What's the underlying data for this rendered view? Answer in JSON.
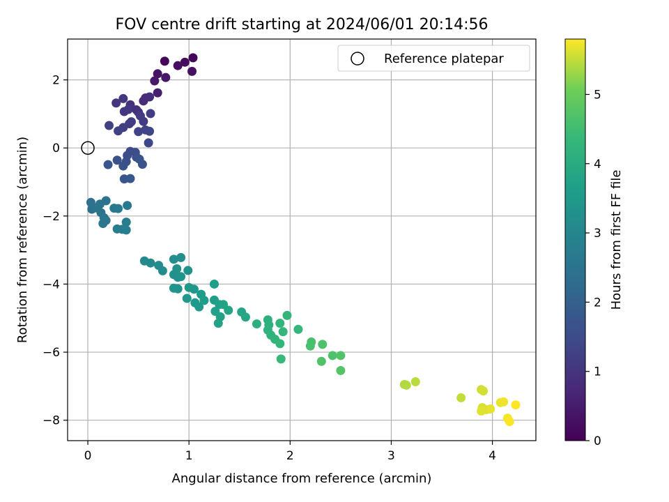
{
  "chart_data": {
    "type": "scatter",
    "title": "FOV centre drift starting at 2024/06/01 20:14:56",
    "xlabel": "Angular distance from reference (arcmin)",
    "ylabel": "Rotation from reference (arcmin)",
    "xlim": [
      -0.2,
      4.43
    ],
    "ylim": [
      -8.6,
      3.2
    ],
    "xticks": [
      0,
      1,
      2,
      3,
      4
    ],
    "xtick_labels": [
      "0",
      "1",
      "2",
      "3",
      "4"
    ],
    "yticks": [
      2,
      0,
      -2,
      -4,
      -6,
      -8
    ],
    "ytick_labels": [
      "2",
      "0",
      "−2",
      "−4",
      "−6",
      "−8"
    ],
    "grid": true,
    "legend": {
      "position": "top-right",
      "entries": [
        "Reference platepar"
      ]
    },
    "reference": {
      "x": 0,
      "y": 0
    },
    "colorbar": {
      "label": "Hours from first FF file",
      "range": [
        0,
        5.8
      ],
      "ticks": [
        0,
        1,
        2,
        3,
        4,
        5
      ],
      "tick_labels": [
        "0",
        "1",
        "2",
        "3",
        "4",
        "5"
      ],
      "colormap": "viridis"
    },
    "points": [
      [
        0.76,
        2.55,
        0.1
      ],
      [
        1.04,
        2.65,
        0.15
      ],
      [
        0.96,
        2.52,
        0.2
      ],
      [
        0.89,
        2.42,
        0.25
      ],
      [
        1.03,
        2.25,
        0.3
      ],
      [
        0.69,
        2.18,
        0.35
      ],
      [
        0.77,
        2.07,
        0.4
      ],
      [
        0.66,
        1.97,
        0.45
      ],
      [
        0.69,
        1.62,
        0.55
      ],
      [
        0.55,
        1.38,
        0.8
      ],
      [
        0.57,
        1.47,
        0.82
      ],
      [
        0.61,
        1.5,
        0.85
      ],
      [
        0.48,
        1.12,
        0.9
      ],
      [
        0.5,
        1.05,
        0.92
      ],
      [
        0.42,
        1.27,
        0.95
      ],
      [
        0.28,
        1.32,
        1.0
      ],
      [
        0.35,
        1.45,
        1.02
      ],
      [
        0.36,
        1.07,
        1.05
      ],
      [
        0.4,
        1.13,
        1.07
      ],
      [
        0.52,
        0.94,
        1.1
      ],
      [
        0.55,
        0.78,
        1.12
      ],
      [
        0.62,
        1.01,
        1.15
      ],
      [
        0.41,
        0.71,
        1.18
      ],
      [
        0.43,
        0.77,
        1.2
      ],
      [
        0.35,
        0.6,
        1.22
      ],
      [
        0.21,
        0.66,
        1.25
      ],
      [
        0.3,
        0.5,
        1.27
      ],
      [
        0.5,
        0.48,
        1.3
      ],
      [
        0.57,
        0.53,
        1.32
      ],
      [
        0.61,
        0.49,
        1.35
      ],
      [
        0.6,
        0.15,
        1.38
      ],
      [
        0.42,
        -0.1,
        1.5
      ],
      [
        0.47,
        -0.13,
        1.52
      ],
      [
        0.39,
        -0.22,
        1.55
      ],
      [
        0.48,
        -0.27,
        1.58
      ],
      [
        0.38,
        -0.4,
        1.6
      ],
      [
        0.29,
        -0.36,
        1.62
      ],
      [
        0.35,
        -0.53,
        1.65
      ],
      [
        0.51,
        -0.33,
        1.68
      ],
      [
        0.54,
        -0.48,
        1.7
      ],
      [
        0.2,
        -0.49,
        1.72
      ],
      [
        0.36,
        -0.91,
        1.75
      ],
      [
        0.42,
        -0.9,
        1.78
      ],
      [
        0.03,
        -1.6,
        2.4
      ],
      [
        0.04,
        -1.8,
        2.42
      ],
      [
        0.08,
        -1.76,
        2.45
      ],
      [
        0.12,
        -1.65,
        2.48
      ],
      [
        0.18,
        -1.55,
        2.5
      ],
      [
        0.13,
        -1.9,
        2.52
      ],
      [
        0.16,
        -2.05,
        2.55
      ],
      [
        0.18,
        -2.13,
        2.58
      ],
      [
        0.15,
        -2.22,
        2.6
      ],
      [
        0.26,
        -1.77,
        2.62
      ],
      [
        0.3,
        -1.78,
        2.65
      ],
      [
        0.39,
        -1.69,
        2.68
      ],
      [
        0.38,
        -2.18,
        2.7
      ],
      [
        0.29,
        -2.38,
        2.72
      ],
      [
        0.34,
        -2.39,
        2.75
      ],
      [
        0.38,
        -2.41,
        2.78
      ],
      [
        0.56,
        -3.32,
        3.1
      ],
      [
        0.62,
        -3.38,
        3.12
      ],
      [
        0.7,
        -3.45,
        3.15
      ],
      [
        0.74,
        -3.61,
        3.18
      ],
      [
        0.85,
        -3.27,
        3.2
      ],
      [
        0.92,
        -3.22,
        3.22
      ],
      [
        0.88,
        -3.55,
        3.25
      ],
      [
        0.85,
        -3.72,
        3.28
      ],
      [
        0.89,
        -3.8,
        3.3
      ],
      [
        0.99,
        -3.6,
        3.32
      ],
      [
        0.92,
        -3.78,
        3.35
      ],
      [
        0.85,
        -4.12,
        3.38
      ],
      [
        0.89,
        -4.14,
        3.4
      ],
      [
        1.0,
        -4.1,
        3.45
      ],
      [
        1.05,
        -4.15,
        3.48
      ],
      [
        0.98,
        -4.42,
        3.5
      ],
      [
        1.06,
        -4.55,
        3.52
      ],
      [
        1.1,
        -4.67,
        3.55
      ],
      [
        1.12,
        -4.3,
        3.58
      ],
      [
        1.15,
        -4.48,
        3.6
      ],
      [
        1.25,
        -4.0,
        3.62
      ],
      [
        1.25,
        -4.47,
        3.65
      ],
      [
        1.3,
        -4.6,
        3.68
      ],
      [
        1.26,
        -4.8,
        3.7
      ],
      [
        1.31,
        -4.96,
        3.72
      ],
      [
        1.29,
        -5.15,
        3.75
      ],
      [
        1.34,
        -4.6,
        3.77
      ],
      [
        1.39,
        -4.77,
        3.8
      ],
      [
        1.52,
        -4.82,
        3.82
      ],
      [
        1.56,
        -4.97,
        3.85
      ],
      [
        1.67,
        -5.17,
        4.1
      ],
      [
        1.78,
        -5.05,
        4.12
      ],
      [
        1.79,
        -5.2,
        4.15
      ],
      [
        1.78,
        -5.35,
        4.18
      ],
      [
        1.81,
        -5.5,
        4.2
      ],
      [
        1.85,
        -5.62,
        4.22
      ],
      [
        1.9,
        -5.15,
        4.25
      ],
      [
        1.93,
        -5.4,
        4.28
      ],
      [
        1.97,
        -4.92,
        4.3
      ],
      [
        1.9,
        -5.75,
        4.32
      ],
      [
        2.08,
        -5.33,
        4.35
      ],
      [
        1.91,
        -6.2,
        4.38
      ],
      [
        2.21,
        -5.7,
        4.6
      ],
      [
        2.2,
        -5.82,
        4.62
      ],
      [
        2.32,
        -5.77,
        4.65
      ],
      [
        2.42,
        -6.1,
        4.68
      ],
      [
        2.31,
        -6.27,
        4.7
      ],
      [
        2.5,
        -6.1,
        4.72
      ],
      [
        2.5,
        -6.54,
        4.75
      ],
      [
        3.13,
        -6.95,
        5.4
      ],
      [
        3.15,
        -6.97,
        5.42
      ],
      [
        3.24,
        -6.87,
        5.45
      ],
      [
        3.69,
        -7.34,
        5.5
      ],
      [
        3.89,
        -7.1,
        5.55
      ],
      [
        3.91,
        -7.14,
        5.58
      ],
      [
        3.9,
        -7.63,
        5.6
      ],
      [
        3.94,
        -7.69,
        5.62
      ],
      [
        3.89,
        -7.73,
        5.65
      ],
      [
        3.98,
        -7.67,
        5.68
      ],
      [
        4.08,
        -7.48,
        5.7
      ],
      [
        4.11,
        -7.46,
        5.72
      ],
      [
        4.15,
        -7.94,
        5.75
      ],
      [
        4.17,
        -8.04,
        5.78
      ],
      [
        4.23,
        -7.55,
        5.8
      ]
    ]
  }
}
